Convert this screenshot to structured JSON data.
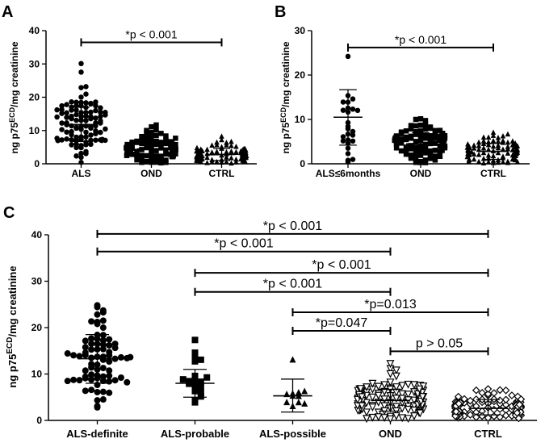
{
  "chart_data": [
    {
      "panel": "A",
      "type": "scatter",
      "ylabel_parts": [
        "ng p75",
        "ECD",
        "/mg creatinine"
      ],
      "ylim": [
        0,
        40
      ],
      "yticks": [
        0,
        10,
        20,
        30,
        40
      ],
      "categories": [
        "ALS",
        "OND",
        "CTRL"
      ],
      "marker_shapes": [
        "circle",
        "square",
        "triangle"
      ],
      "summary": [
        {
          "mean": 11.8,
          "sd_low": 6.7,
          "sd_high": 17.0
        },
        {
          "mean": 4.5,
          "sd_low": 2.0,
          "sd_high": 7.0
        },
        {
          "mean": 2.8,
          "sd_low": 1.0,
          "sd_high": 4.6
        }
      ],
      "comparisons": [
        {
          "from": 0,
          "to": 2,
          "y": 36.5,
          "label": "*p < 0.001"
        }
      ]
    },
    {
      "panel": "B",
      "type": "scatter",
      "ylabel_parts": [
        "ng p75",
        "ECD",
        "/mg creatinine"
      ],
      "ylim": [
        0,
        30
      ],
      "yticks": [
        0,
        10,
        20,
        30
      ],
      "categories": [
        "ALS≤6months",
        "OND",
        "CTRL"
      ],
      "marker_shapes": [
        "circle",
        "square",
        "triangle"
      ],
      "summary": [
        {
          "mean": 10.5,
          "sd_low": 4.2,
          "sd_high": 16.7
        },
        {
          "mean": 4.5,
          "sd_low": 2.0,
          "sd_high": 7.0
        },
        {
          "mean": 2.8,
          "sd_low": 1.0,
          "sd_high": 4.6
        }
      ],
      "comparisons": [
        {
          "from": 0,
          "to": 2,
          "y": 26.2,
          "label": "*p < 0.001"
        }
      ]
    },
    {
      "panel": "C",
      "type": "scatter",
      "ylabel_parts": [
        "ng p75",
        "ECD",
        "/mg creatinine"
      ],
      "ylim": [
        0,
        40
      ],
      "yticks": [
        0,
        10,
        20,
        30,
        40
      ],
      "categories": [
        "ALS-definite",
        "ALS-probable",
        "ALS-possible",
        "OND",
        "CTRL"
      ],
      "marker_shapes": [
        "circle",
        "square",
        "triangle",
        "triangle-down-open",
        "diamond-open"
      ],
      "summary": [
        {
          "mean": 13.3,
          "sd_low": 8.0,
          "sd_high": 18.5
        },
        {
          "mean": 8.0,
          "sd_low": 5.0,
          "sd_high": 11.0
        },
        {
          "mean": 5.3,
          "sd_low": 1.8,
          "sd_high": 8.9
        },
        {
          "mean": 4.3,
          "sd_low": 2.0,
          "sd_high": 6.7
        },
        {
          "mean": 2.6,
          "sd_low": 1.2,
          "sd_high": 4.5
        }
      ],
      "comparisons": [
        {
          "from": 0,
          "to": 4,
          "y": 40.2,
          "label": "*p < 0.001"
        },
        {
          "from": 0,
          "to": 3,
          "y": 36.4,
          "label": "*p < 0.001"
        },
        {
          "from": 1,
          "to": 4,
          "y": 31.8,
          "label": "*p < 0.001"
        },
        {
          "from": 1,
          "to": 3,
          "y": 27.7,
          "label": "*p < 0.001"
        },
        {
          "from": 2,
          "to": 4,
          "y": 23.3,
          "label": "*p=0.013"
        },
        {
          "from": 2,
          "to": 3,
          "y": 19.3,
          "label": "*p=0.047"
        },
        {
          "from": 3,
          "to": 4,
          "y": 14.9,
          "label": "p > 0.05"
        }
      ]
    }
  ]
}
